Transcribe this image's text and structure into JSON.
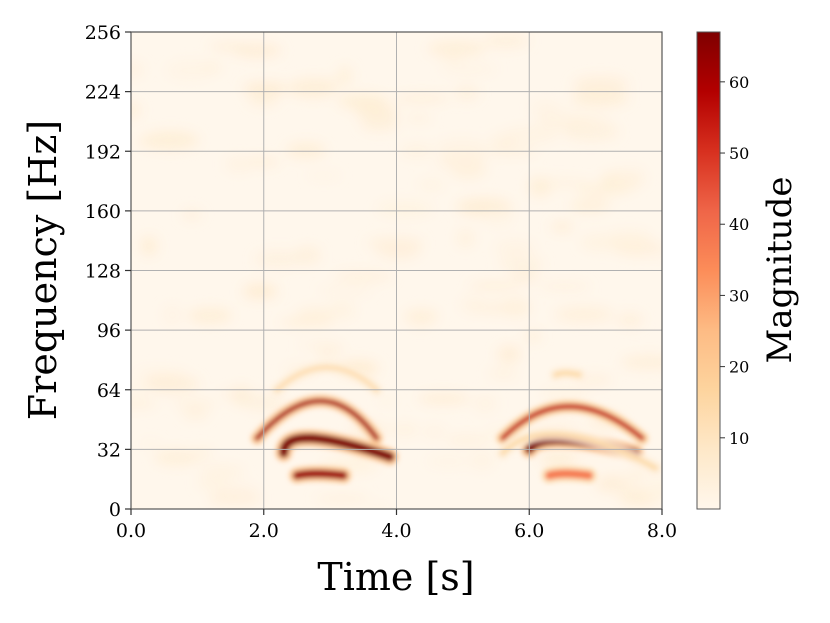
{
  "chart_data": {
    "type": "heatmap",
    "subtype": "spectrogram",
    "title": "",
    "xlabel": "Time [s]",
    "ylabel": "Frequency [Hz]",
    "xlim": [
      0,
      8
    ],
    "ylim": [
      0,
      256
    ],
    "xticks": [
      0,
      2,
      4,
      6,
      8
    ],
    "xtick_labels": [
      "0.0",
      "2.0",
      "4.0",
      "6.0",
      "8.0"
    ],
    "yticks": [
      0,
      32,
      64,
      96,
      128,
      160,
      192,
      224,
      256
    ],
    "ytick_labels": [
      "0",
      "32",
      "64",
      "96",
      "128",
      "160",
      "192",
      "224",
      "256"
    ],
    "grid": true,
    "colormap": "OrRd",
    "colorbar": {
      "label": "Magnitude",
      "min": 0,
      "max": 67,
      "ticks": [
        10,
        20,
        30,
        40,
        50,
        60
      ],
      "tick_labels": [
        "10",
        "20",
        "30",
        "40",
        "50",
        "60"
      ]
    },
    "background_level": 2,
    "events": [
      {
        "name": "event-1",
        "time_range": [
          1.9,
          3.9
        ],
        "components": [
          {
            "name": "upper-arc",
            "start": {
              "t": 1.9,
              "f": 38
            },
            "peak": {
              "t": 2.85,
              "f": 58
            },
            "end": {
              "t": 3.7,
              "f": 38
            },
            "magnitude": 60
          },
          {
            "name": "middle-band",
            "start": {
              "t": 2.3,
              "f": 30
            },
            "peak": {
              "t": 2.7,
              "f": 38
            },
            "end": {
              "t": 3.9,
              "f": 28
            },
            "magnitude": 67
          },
          {
            "name": "lower-band",
            "start": {
              "t": 2.5,
              "f": 18
            },
            "peak": {
              "t": 2.8,
              "f": 19
            },
            "end": {
              "t": 3.2,
              "f": 18
            },
            "magnitude": 62
          },
          {
            "name": "faint-harmonic",
            "start": {
              "t": 2.2,
              "f": 64
            },
            "peak": {
              "t": 2.95,
              "f": 76
            },
            "end": {
              "t": 3.7,
              "f": 64
            },
            "magnitude": 12
          }
        ]
      },
      {
        "name": "event-2",
        "time_range": [
          5.4,
          7.9
        ],
        "components": [
          {
            "name": "upper-arc",
            "start": {
              "t": 5.6,
              "f": 38
            },
            "peak": {
              "t": 6.6,
              "f": 55
            },
            "end": {
              "t": 7.7,
              "f": 38
            },
            "magnitude": 55
          },
          {
            "name": "middle-band",
            "start": {
              "t": 6.0,
              "f": 32
            },
            "peak": {
              "t": 6.5,
              "f": 37
            },
            "end": {
              "t": 7.6,
              "f": 30
            },
            "magnitude": 67
          },
          {
            "name": "lower-band",
            "start": {
              "t": 6.3,
              "f": 18
            },
            "peak": {
              "t": 6.55,
              "f": 19
            },
            "end": {
              "t": 6.9,
              "f": 18
            },
            "magnitude": 38
          },
          {
            "name": "faint-harmonic",
            "start": {
              "t": 5.6,
              "f": 30
            },
            "peak": {
              "t": 6.5,
              "f": 40
            },
            "end": {
              "t": 7.9,
              "f": 22
            },
            "magnitude": 14
          },
          {
            "name": "faint-cap",
            "start": {
              "t": 6.4,
              "f": 72
            },
            "peak": {
              "t": 6.55,
              "f": 73
            },
            "end": {
              "t": 6.75,
              "f": 72
            },
            "magnitude": 14
          }
        ]
      }
    ]
  }
}
